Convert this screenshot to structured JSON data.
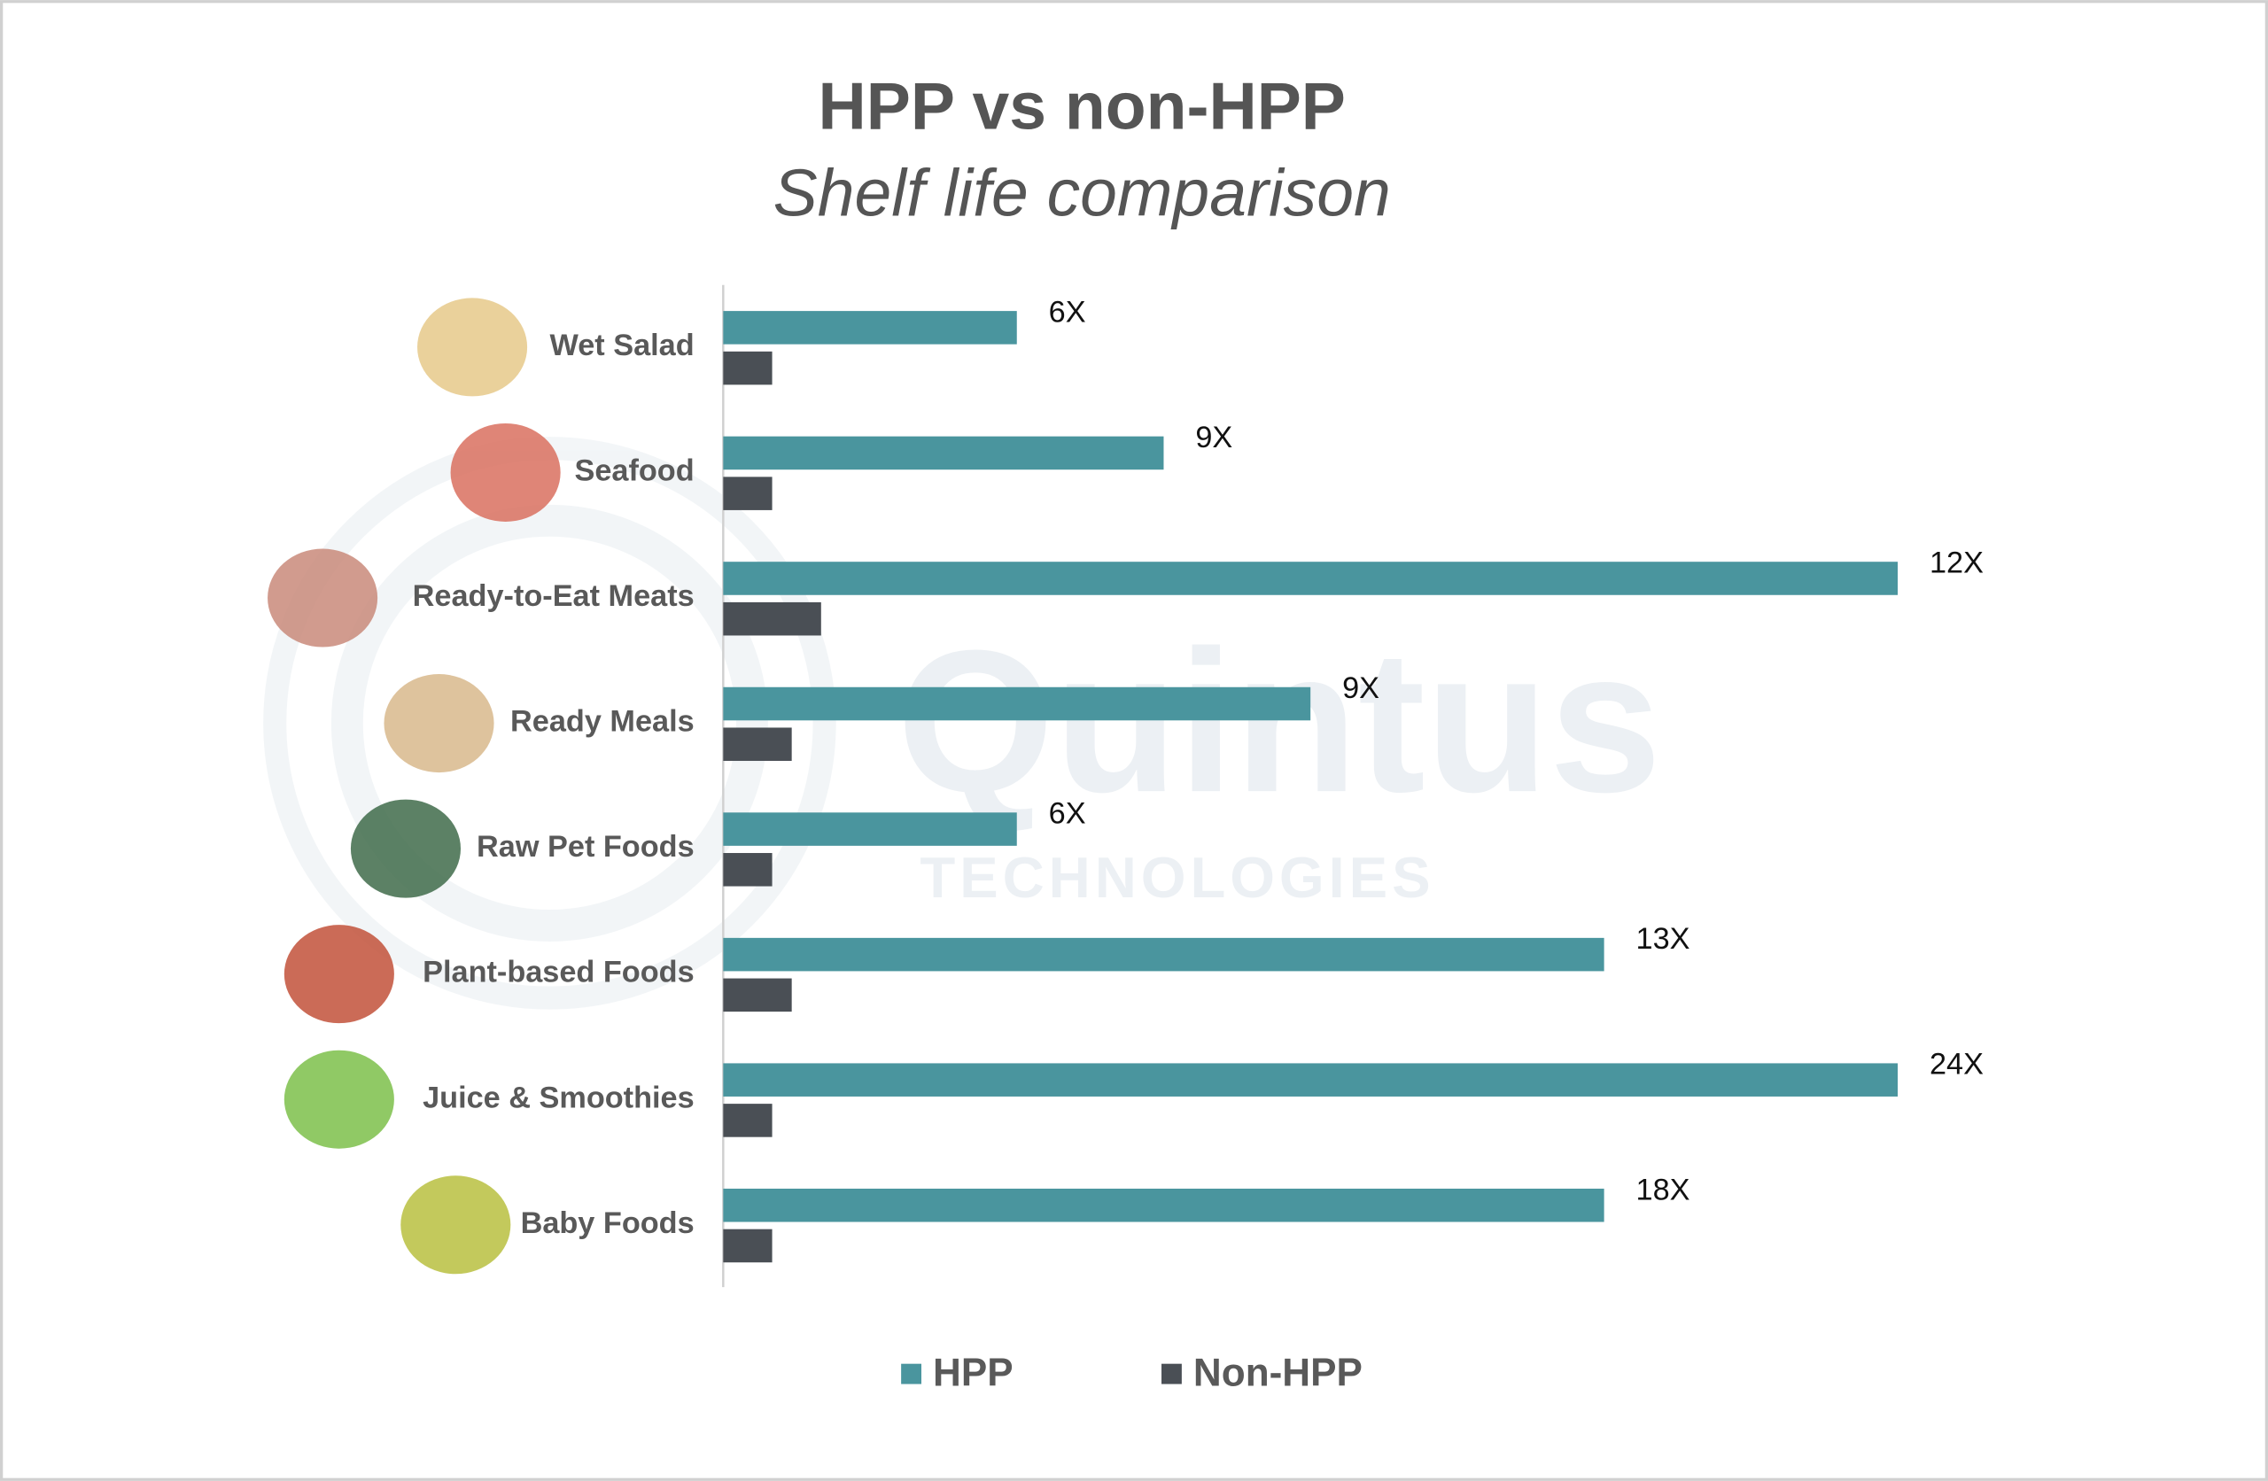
{
  "chart_data": {
    "type": "hbar",
    "title": "HPP vs non-HPP",
    "subtitle": "Shelf life comparison",
    "categories": [
      "Wet Salad",
      "Seafood",
      "Ready-to-Eat Meats",
      "Ready Meals",
      "Raw Pet Foods",
      "Plant-based Foods",
      "Juice & Smoothies",
      "Baby Foods"
    ],
    "series": [
      {
        "name": "HPP",
        "color": "#4a959e",
        "values": [
          6,
          9,
          24,
          12,
          6,
          18,
          24,
          18
        ],
        "multiplier_labels": [
          "6X",
          "9X",
          "12X",
          "9X",
          "6X",
          "13X",
          "24X",
          "18X"
        ]
      },
      {
        "name": "Non-HPP",
        "color": "#4a4f55",
        "values": [
          1,
          1,
          2,
          1.4,
          1,
          1.4,
          1,
          1
        ]
      }
    ],
    "xlim": [
      0,
      24
    ],
    "legend": "bottom",
    "watermark": {
      "name": "Quintus",
      "tagline": "TECHNOLOGIES"
    }
  }
}
